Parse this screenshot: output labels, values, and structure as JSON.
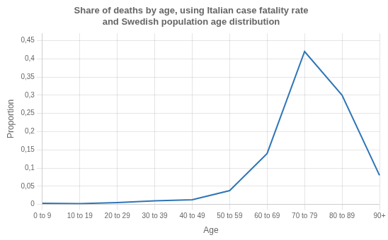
{
  "chart_data": {
    "type": "line",
    "title": "Share of deaths by age, using Italian case fatality rate\nand Swedish population age distribution",
    "xlabel": "Age",
    "ylabel": "Proportion",
    "categories": [
      "0 to 9",
      "10 to 19",
      "20 to 29",
      "30 to 39",
      "40 to 49",
      "50 to 59",
      "60 to 69",
      "70 to 79",
      "80 to 89",
      "90+"
    ],
    "values": [
      0.003,
      0.002,
      0.005,
      0.01,
      0.013,
      0.038,
      0.14,
      0.42,
      0.3,
      0.08
    ],
    "color": "#2e75b6",
    "ylim": [
      0,
      0.47
    ],
    "yticks": [
      0,
      {
        "value": 0.05,
        "label": "0,05"
      },
      {
        "value": 0.1,
        "label": "0,1"
      },
      {
        "value": 0.15,
        "label": "0,15"
      },
      {
        "value": 0.2,
        "label": "0,2"
      },
      {
        "value": 0.25,
        "label": "0,25"
      },
      {
        "value": 0.3,
        "label": "0,3"
      },
      {
        "value": 0.35,
        "label": "0,35"
      },
      {
        "value": 0.4,
        "label": "0,4"
      },
      {
        "value": 0.45,
        "label": "0,45"
      }
    ],
    "grid": true
  }
}
